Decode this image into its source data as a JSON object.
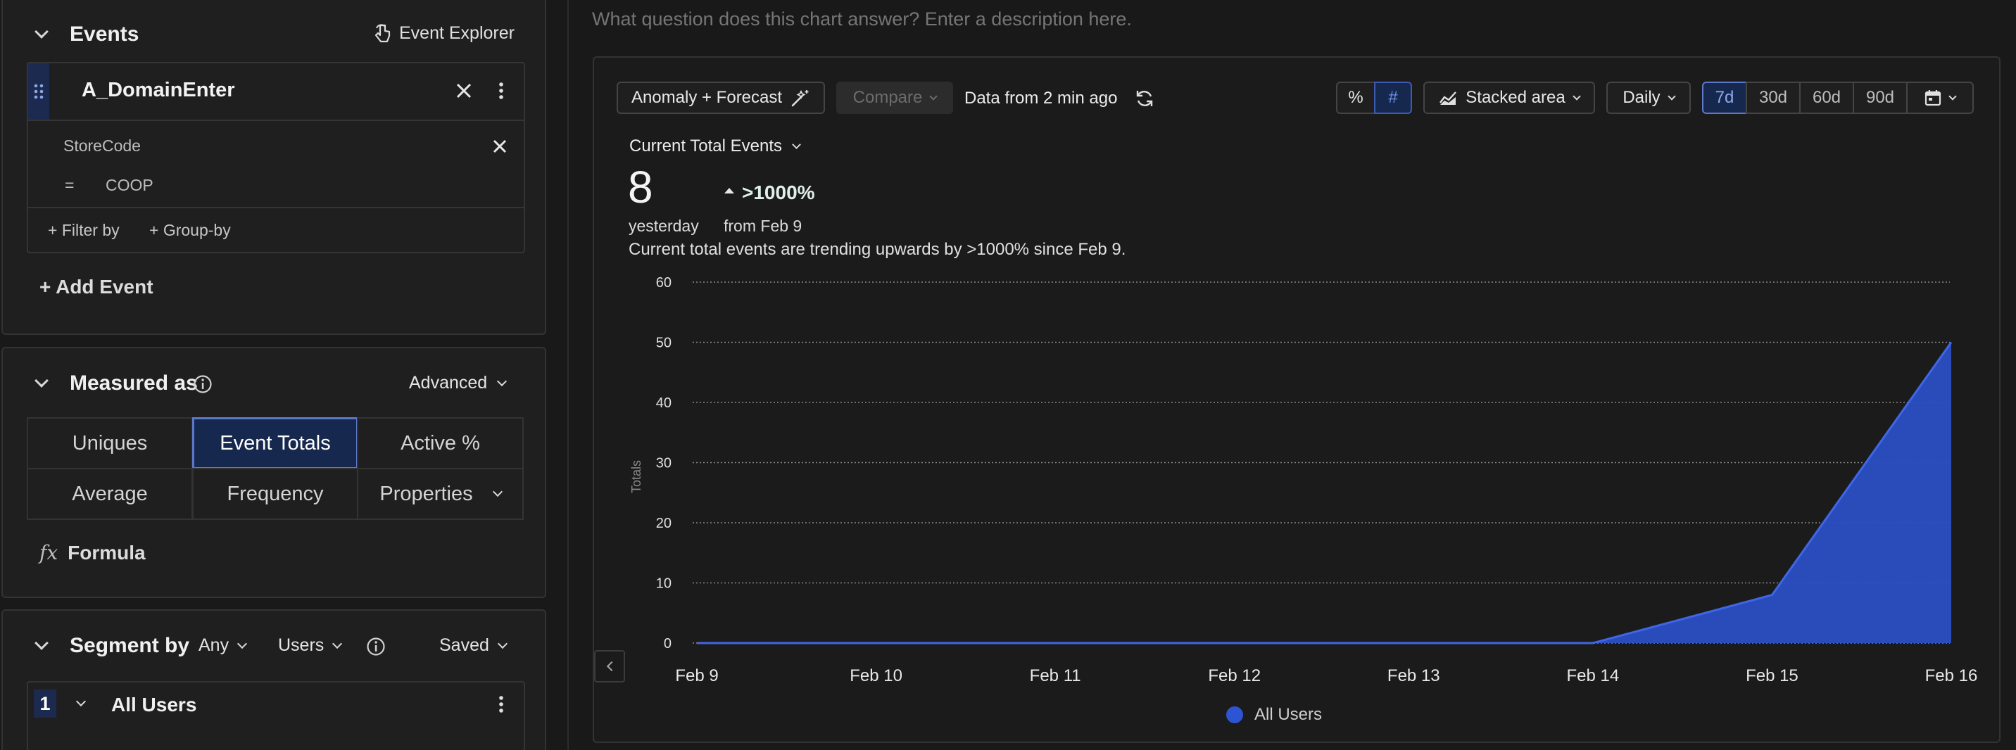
{
  "events_panel": {
    "title": "Events",
    "explorer_label": "Event Explorer",
    "event": {
      "name": "A_DomainEnter",
      "filter_property": "StoreCode",
      "filter_operator": "=",
      "filter_value": "COOP"
    },
    "filter_by_label": "+ Filter by",
    "group_by_label": "+ Group-by",
    "add_event_label": "+ Add Event"
  },
  "measured_as": {
    "title": "Measured as",
    "advanced_label": "Advanced",
    "options": [
      "Uniques",
      "Event Totals",
      "Active %",
      "Average",
      "Frequency",
      "Properties"
    ],
    "selected": "Event Totals",
    "formula_icon": "fx",
    "formula_label": "Formula"
  },
  "segment_by": {
    "title": "Segment by",
    "any_label": "Any",
    "users_label": "Users",
    "saved_label": "Saved",
    "segment_index": "1",
    "segment_name": "All Users"
  },
  "description_placeholder": "What question does this chart answer? Enter a description here.",
  "toolbar": {
    "anomaly_label": "Anomaly + Forecast",
    "compare_label": "Compare",
    "data_freshness": "Data from 2 min ago",
    "percent_label": "%",
    "number_label": "#",
    "chart_type_label": "Stacked area",
    "interval_label": "Daily",
    "ranges": [
      "7d",
      "30d",
      "60d",
      "90d"
    ],
    "selected_range": "7d"
  },
  "metric": {
    "selector_label": "Current Total Events",
    "value": "8",
    "period_label": "yesterday",
    "change": ">1000%",
    "change_period": "from Feb 9",
    "summary": "Current total events are trending upwards by >1000% since Feb 9."
  },
  "colors": {
    "accent": "#2d54d2",
    "area_fill": "#2b4fc4",
    "selected_bg": "#17284f"
  },
  "chart_data": {
    "type": "area",
    "x": [
      "Feb 9",
      "Feb 10",
      "Feb 11",
      "Feb 12",
      "Feb 13",
      "Feb 14",
      "Feb 15",
      "Feb 16"
    ],
    "series": [
      {
        "name": "All Users",
        "values": [
          0,
          0,
          0,
          0,
          0,
          0,
          8,
          50
        ]
      }
    ],
    "ylabel": "Totals",
    "yticks": [
      0,
      10,
      20,
      30,
      40,
      50,
      60
    ],
    "ylim": [
      0,
      60
    ],
    "grid": true,
    "stacked": true,
    "legend_position": "bottom"
  }
}
